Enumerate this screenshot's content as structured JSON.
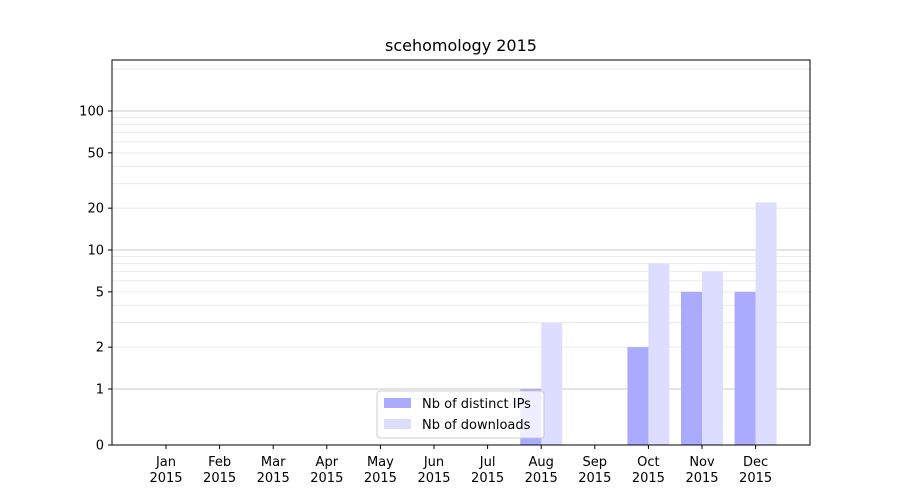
{
  "chart_data": {
    "type": "bar",
    "title": "scehomology 2015",
    "xlabel": "",
    "ylabel": "",
    "y_scale": "symlog",
    "ylim": [
      0,
      120
    ],
    "y_tick_labels": [
      "0",
      "1",
      "2",
      "5",
      "10",
      "20",
      "50",
      "100"
    ],
    "grid": true,
    "categories": [
      "Jan\n2015",
      "Feb\n2015",
      "Mar\n2015",
      "Apr\n2015",
      "May\n2015",
      "Jun\n2015",
      "Jul\n2015",
      "Aug\n2015",
      "Sep\n2015",
      "Oct\n2015",
      "Nov\n2015",
      "Dec\n2015"
    ],
    "series": [
      {
        "name": "Nb of distinct IPs",
        "color": "#aaaaff",
        "values": [
          0,
          0,
          0,
          0,
          0,
          0,
          0,
          1,
          0,
          2,
          5,
          5
        ]
      },
      {
        "name": "Nb of downloads",
        "color": "#ddddff",
        "values": [
          0,
          0,
          0,
          0,
          0,
          0,
          0,
          3,
          0,
          8,
          7,
          22
        ]
      }
    ],
    "legend_position": "bottom-center"
  }
}
